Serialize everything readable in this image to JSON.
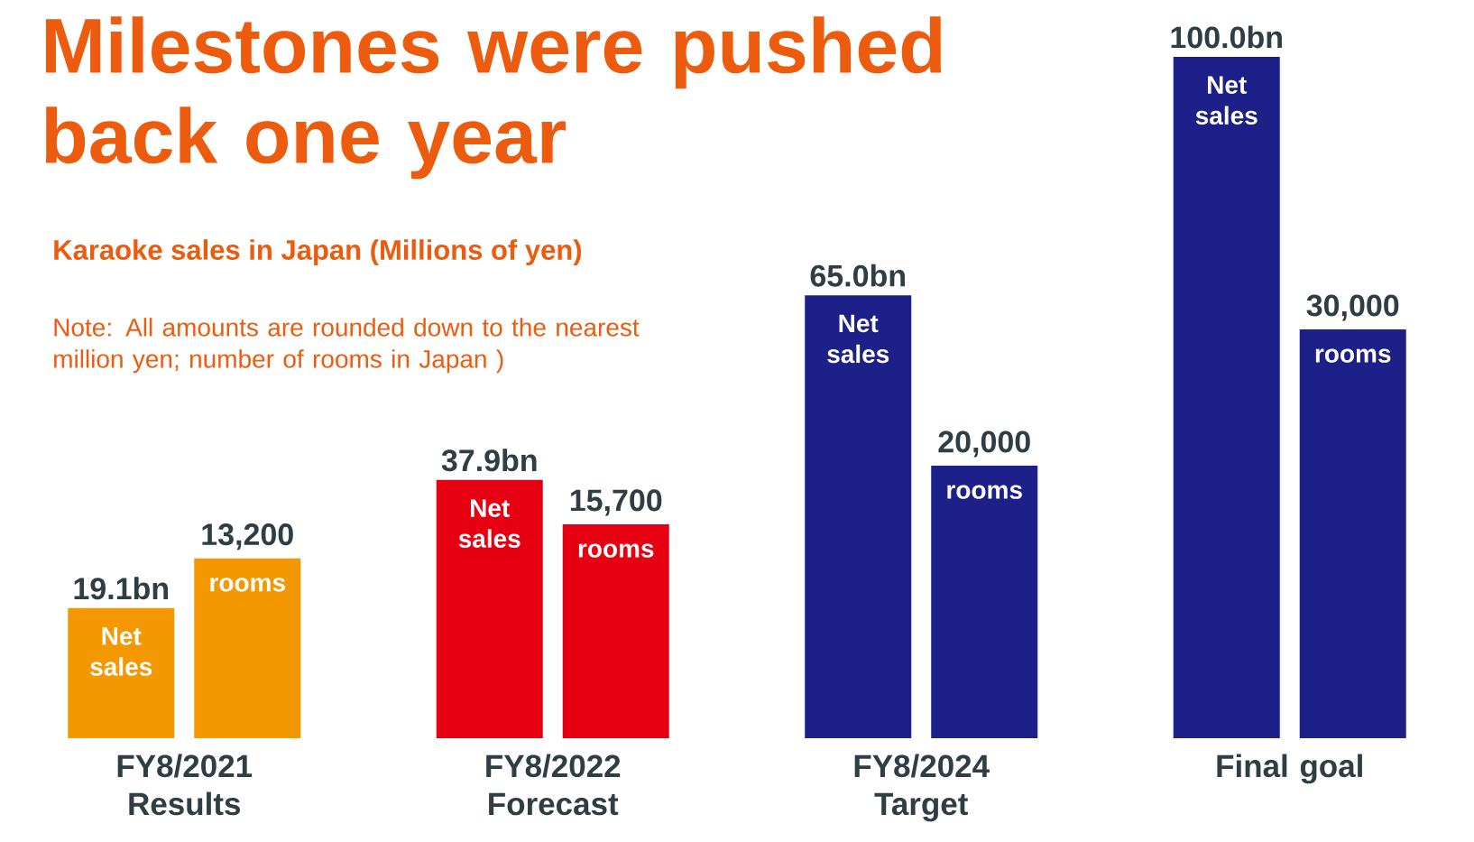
{
  "chart_data": {
    "type": "bar",
    "title": "Milestones were pushed back one year",
    "subtitle": "Karaoke sales in Japan (Millions of yen)",
    "annotations": [
      "Note: All amounts are rounded down to the nearest million yen; number of rooms in Japan )"
    ],
    "categories": [
      "FY8/2021 Results",
      "FY8/2022 Forecast",
      "FY8/2024 Target",
      "Final goal"
    ],
    "ylim": [
      0,
      100
    ],
    "y2lim": [
      0,
      50000
    ],
    "tick_labels": "x",
    "series": [
      {
        "name": "Net sales",
        "values": [
          19.1,
          37.9,
          65.0,
          100.0
        ],
        "colors": [
          "#f39800",
          "#e60012",
          "#1d2088",
          "#1d2088"
        ],
        "value_labels": [
          "19.1bn",
          "37.9bn",
          "65.0bn",
          "100.0bn"
        ]
      },
      {
        "name": "rooms",
        "axis": "y2",
        "values": [
          13200,
          15700,
          20000,
          30000
        ],
        "colors": [
          "#f39800",
          "#e60012",
          "#1d2088",
          "#1d2088"
        ],
        "value_labels": [
          "13,200",
          "15,700",
          "20,000",
          "30,000"
        ]
      }
    ]
  }
}
